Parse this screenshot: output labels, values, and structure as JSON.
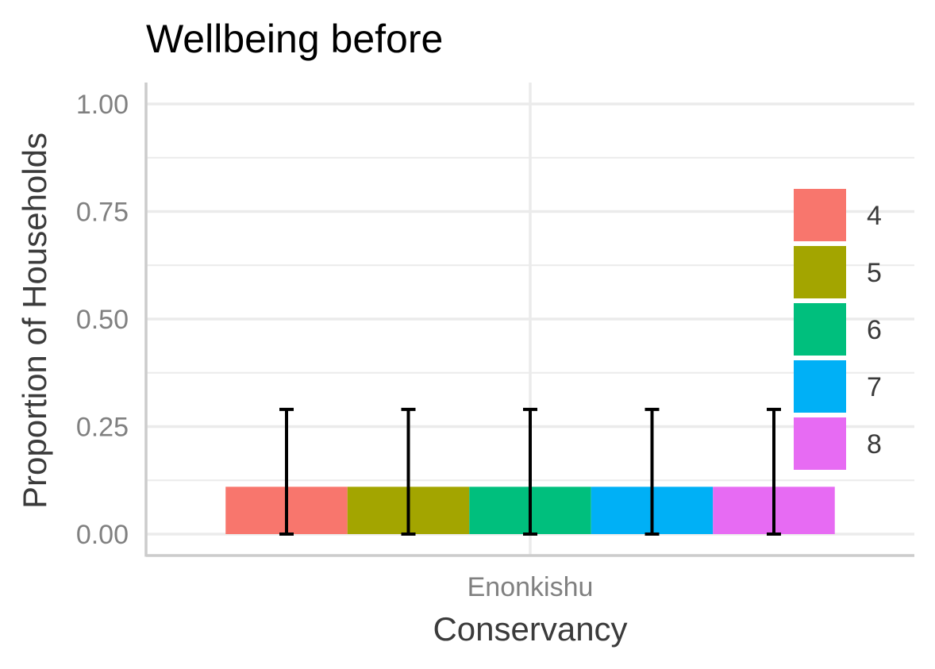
{
  "chart_data": {
    "type": "bar",
    "title": "Wellbeing before",
    "xlabel": "Conservancy",
    "ylabel": "Proportion of Households",
    "categories": [
      "Enonkishu"
    ],
    "ylim": [
      0,
      1.0
    ],
    "yticks": [
      "0.00",
      "0.25",
      "0.50",
      "0.75",
      "1.00"
    ],
    "ytick_values": [
      0,
      0.25,
      0.5,
      0.75,
      1.0
    ],
    "grid": true,
    "legend_position": "right",
    "series": [
      {
        "name": "4",
        "values": [
          0.11
        ],
        "error_low": [
          0.0
        ],
        "error_high": [
          0.29
        ],
        "color": "#F8766D"
      },
      {
        "name": "5",
        "values": [
          0.11
        ],
        "error_low": [
          0.0
        ],
        "error_high": [
          0.29
        ],
        "color": "#A3A500"
      },
      {
        "name": "6",
        "values": [
          0.11
        ],
        "error_low": [
          0.0
        ],
        "error_high": [
          0.29
        ],
        "color": "#00BF7D"
      },
      {
        "name": "7",
        "values": [
          0.11
        ],
        "error_low": [
          0.0
        ],
        "error_high": [
          0.29
        ],
        "color": "#00B0F6"
      },
      {
        "name": "8",
        "values": [
          0.11
        ],
        "error_low": [
          0.0
        ],
        "error_high": [
          0.29
        ],
        "color": "#E76BF3"
      }
    ]
  }
}
